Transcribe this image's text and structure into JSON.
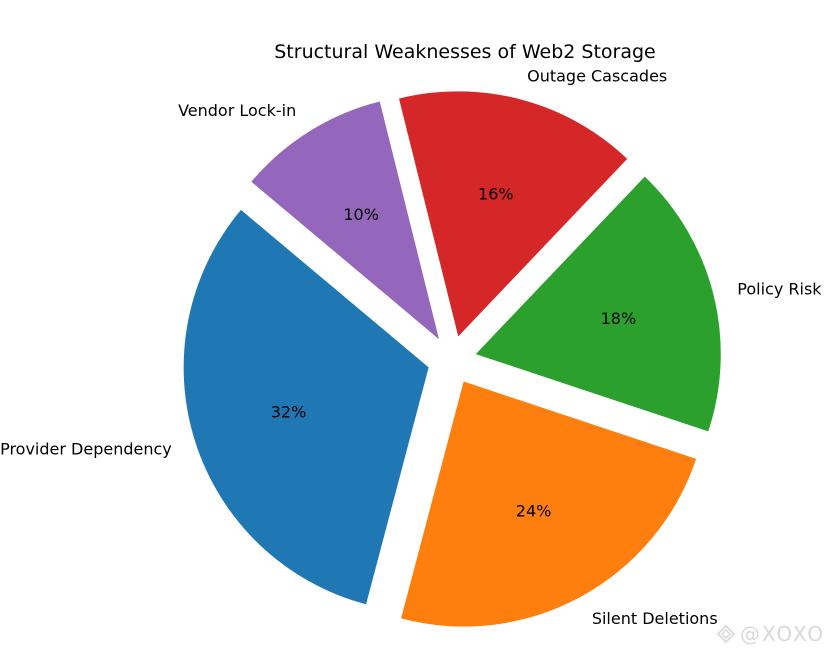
{
  "chart_data": {
    "type": "pie",
    "title": "Structural Weaknesses of Web2 Storage",
    "slices": [
      {
        "label": "Provider Dependency",
        "value": 32,
        "pct_label": "32%",
        "color": "#1f77b4"
      },
      {
        "label": "Silent Deletions",
        "value": 24,
        "pct_label": "24%",
        "color": "#ff7f0e"
      },
      {
        "label": "Policy Risk",
        "value": 18,
        "pct_label": "18%",
        "color": "#2ca02c"
      },
      {
        "label": "Outage Cascades",
        "value": 16,
        "pct_label": "16%",
        "color": "#d62728"
      },
      {
        "label": "Vendor Lock-in",
        "value": 10,
        "pct_label": "10%",
        "color": "#9467bd"
      }
    ],
    "start_angle_deg": 140,
    "direction": "counterclockwise",
    "exploded": true
  },
  "watermark": {
    "text": "@XOXO"
  }
}
